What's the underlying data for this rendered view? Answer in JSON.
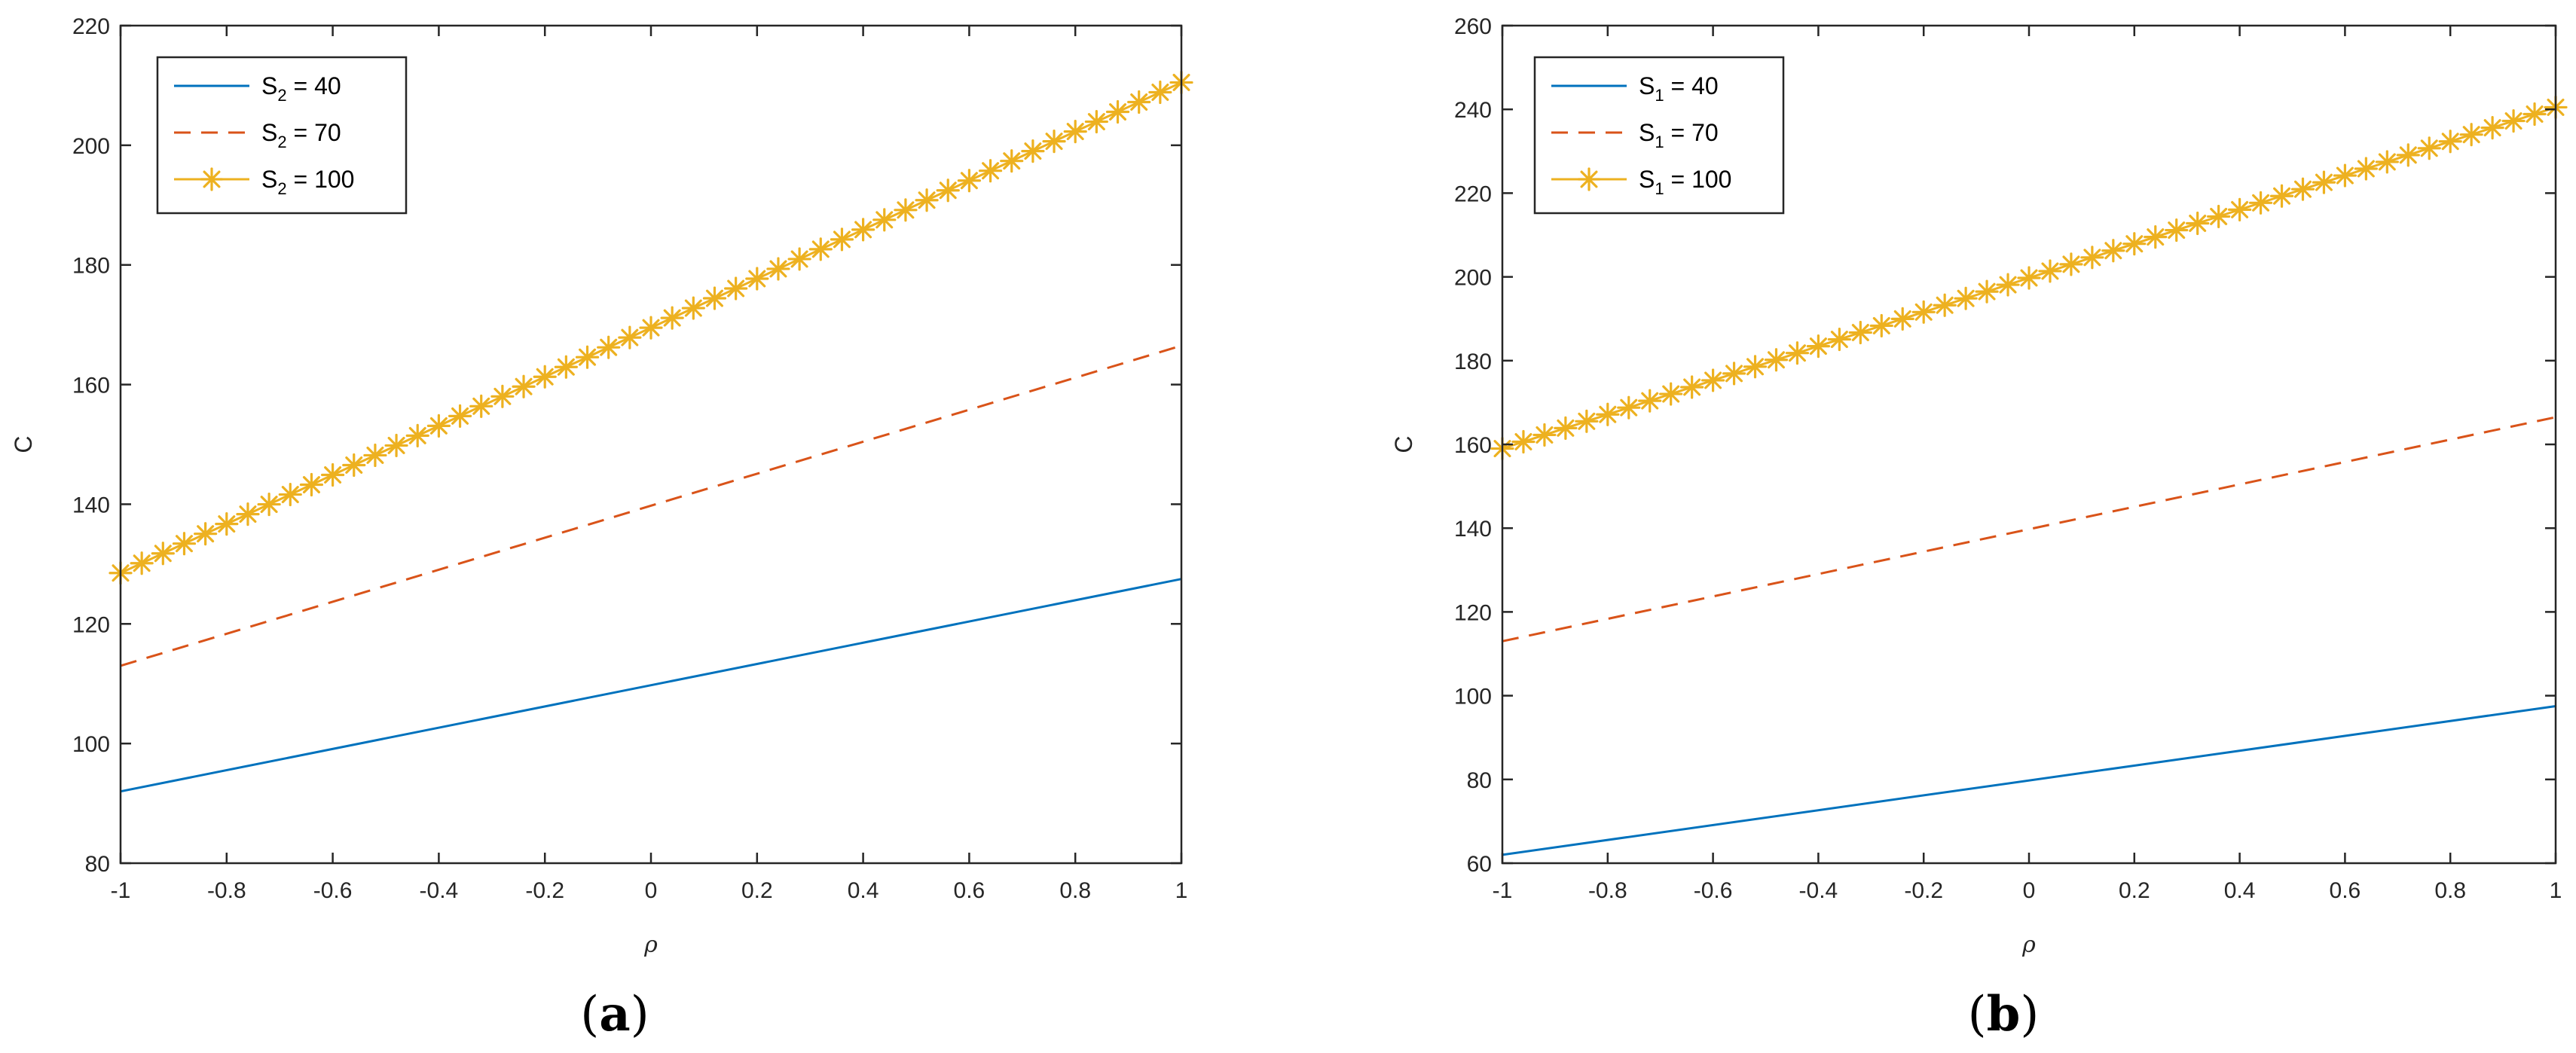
{
  "colors": {
    "series1": "#0072BD",
    "series2": "#D95319",
    "series3": "#EDB120",
    "axis": "#262626"
  },
  "chart_data": [
    {
      "type": "line",
      "panel": "a",
      "panel_label": {
        "open": "(",
        "letter": "a",
        "close": ")"
      },
      "xlabel": "ρ",
      "ylabel": "C",
      "xlim": [
        -1,
        1
      ],
      "ylim": [
        80,
        220
      ],
      "xticks": [
        -1,
        -0.8,
        -0.6,
        -0.4,
        -0.2,
        0,
        0.2,
        0.4,
        0.6,
        0.8,
        1
      ],
      "xtick_labels": [
        "-1",
        "-0.8",
        "-0.6",
        "-0.4",
        "-0.2",
        "0",
        "0.2",
        "0.4",
        "0.6",
        "0.8",
        "1"
      ],
      "yticks": [
        80,
        100,
        120,
        140,
        160,
        180,
        200,
        220
      ],
      "ytick_labels": [
        "80",
        "100",
        "120",
        "140",
        "160",
        "180",
        "200",
        "220"
      ],
      "grid": false,
      "legend_position": "top-left",
      "series": [
        {
          "name": "S2 = 40",
          "label_main": "S",
          "label_sub": "2",
          "label_rest": " = 40",
          "style": "solid",
          "color": "#0072BD",
          "x": [
            -1,
            1
          ],
          "y": [
            92,
            127.5
          ],
          "markers": 0
        },
        {
          "name": "S2 = 70",
          "label_main": "S",
          "label_sub": "2",
          "label_rest": " = 70",
          "style": "dashed",
          "color": "#D95319",
          "x": [
            -1,
            1
          ],
          "y": [
            113,
            166.5
          ],
          "markers": 0
        },
        {
          "name": "S2 = 100",
          "label_main": "S",
          "label_sub": "2",
          "label_rest": " = 100",
          "style": "solid-star",
          "color": "#EDB120",
          "x": [
            -1,
            1
          ],
          "y": [
            128.5,
            210.5
          ],
          "markers": 51
        }
      ]
    },
    {
      "type": "line",
      "panel": "b",
      "panel_label": {
        "open": "(",
        "letter": "b",
        "close": ")"
      },
      "xlabel": "ρ",
      "ylabel": "C",
      "xlim": [
        -1,
        1
      ],
      "ylim": [
        60,
        260
      ],
      "xticks": [
        -1,
        -0.8,
        -0.6,
        -0.4,
        -0.2,
        0,
        0.2,
        0.4,
        0.6,
        0.8,
        1
      ],
      "xtick_labels": [
        "-1",
        "-0.8",
        "-0.6",
        "-0.4",
        "-0.2",
        "0",
        "0.2",
        "0.4",
        "0.6",
        "0.8",
        "1"
      ],
      "yticks": [
        60,
        80,
        100,
        120,
        140,
        160,
        180,
        200,
        220,
        240,
        260
      ],
      "ytick_labels": [
        "60",
        "80",
        "100",
        "120",
        "140",
        "160",
        "180",
        "200",
        "220",
        "240",
        "260"
      ],
      "grid": false,
      "legend_position": "top-left",
      "series": [
        {
          "name": "S1 = 40",
          "label_main": "S",
          "label_sub": "1",
          "label_rest": " = 40",
          "style": "solid",
          "color": "#0072BD",
          "x": [
            -1,
            1
          ],
          "y": [
            62,
            97.5
          ],
          "markers": 0
        },
        {
          "name": "S1 = 70",
          "label_main": "S",
          "label_sub": "1",
          "label_rest": " = 70",
          "style": "dashed",
          "color": "#D95319",
          "x": [
            -1,
            1
          ],
          "y": [
            113,
            166.5
          ],
          "markers": 0
        },
        {
          "name": "S1 = 100",
          "label_main": "S",
          "label_sub": "1",
          "label_rest": " = 100",
          "style": "solid-star",
          "color": "#EDB120",
          "x": [
            -1,
            1
          ],
          "y": [
            159,
            240.5
          ],
          "markers": 51
        }
      ]
    }
  ]
}
